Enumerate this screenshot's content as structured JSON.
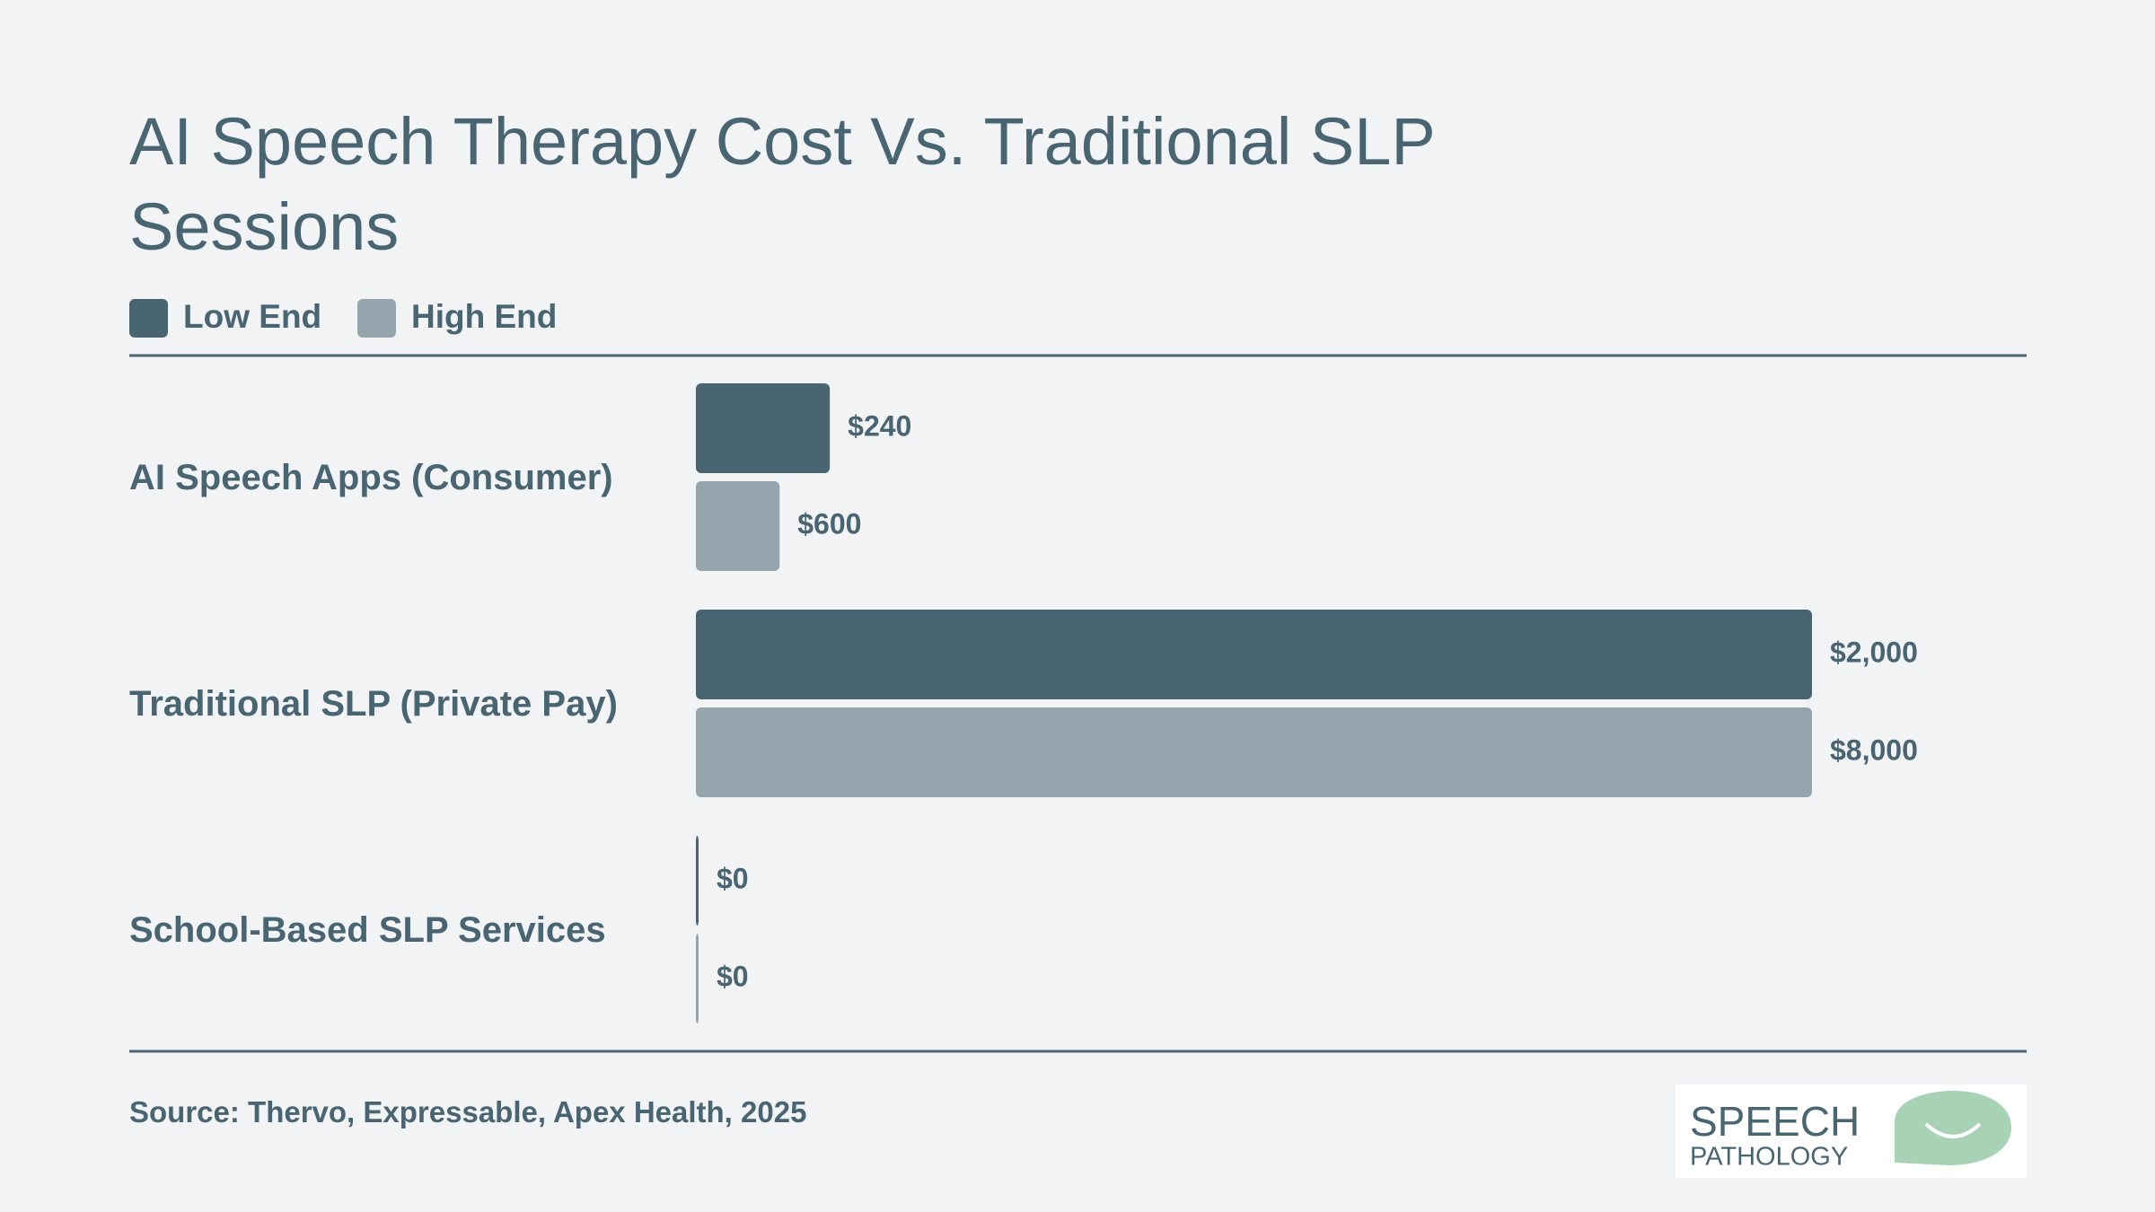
{
  "chart_data": {
    "type": "bar",
    "orientation": "horizontal",
    "title": "AI Speech Therapy Cost Vs. Traditional SLP Sessions",
    "categories": [
      "AI Speech Apps (Consumer)",
      "Traditional SLP (Private Pay)",
      "School-Based SLP Services"
    ],
    "series": [
      {
        "name": "Low End",
        "color": "#4a6572",
        "values": [
          240,
          2000,
          0
        ],
        "value_labels": [
          "$240",
          "$2,000",
          "$0"
        ]
      },
      {
        "name": "High End",
        "color": "#95a5ad",
        "values": [
          600,
          8000,
          0
        ],
        "value_labels": [
          "$600",
          "$8,000",
          "$0"
        ]
      }
    ],
    "source": "Source: Thervo, Expressable, Apex Health, 2025"
  },
  "logo": {
    "line1": "SPEECH",
    "line2": "PATHOLOGY"
  }
}
